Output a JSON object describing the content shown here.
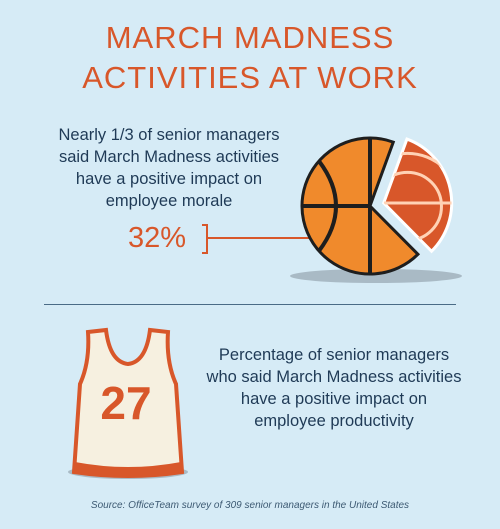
{
  "title_line1": "MARCH MADNESS",
  "title_line2": "ACTIVITIES AT WORK",
  "colors": {
    "background": "#d6ebf6",
    "accent": "#d8572a",
    "text": "#1f3a56",
    "ball_orange": "#f08a2c",
    "ball_seam": "#1e1e1e",
    "jersey": "#f6f0e0"
  },
  "stat1": {
    "lines": [
      "Nearly 1/3 of senior managers",
      "said March Madness activities",
      "have a positive impact on",
      "employee morale"
    ],
    "value_label": "32%"
  },
  "stat2": {
    "lines": [
      "Percentage of senior managers",
      "who said March Madness activities",
      "have a positive impact on",
      "employee productivity"
    ],
    "value_label": "27"
  },
  "source": "Source: OfficeTeam survey of 309 senior managers in the United States",
  "chart_data": [
    {
      "type": "pie",
      "categories": [
        "employee morale"
      ],
      "values": [
        32
      ],
      "unit": "%"
    },
    {
      "type": "table",
      "categories": [
        "employee productivity"
      ],
      "values": [
        27
      ],
      "unit": "%"
    }
  ]
}
